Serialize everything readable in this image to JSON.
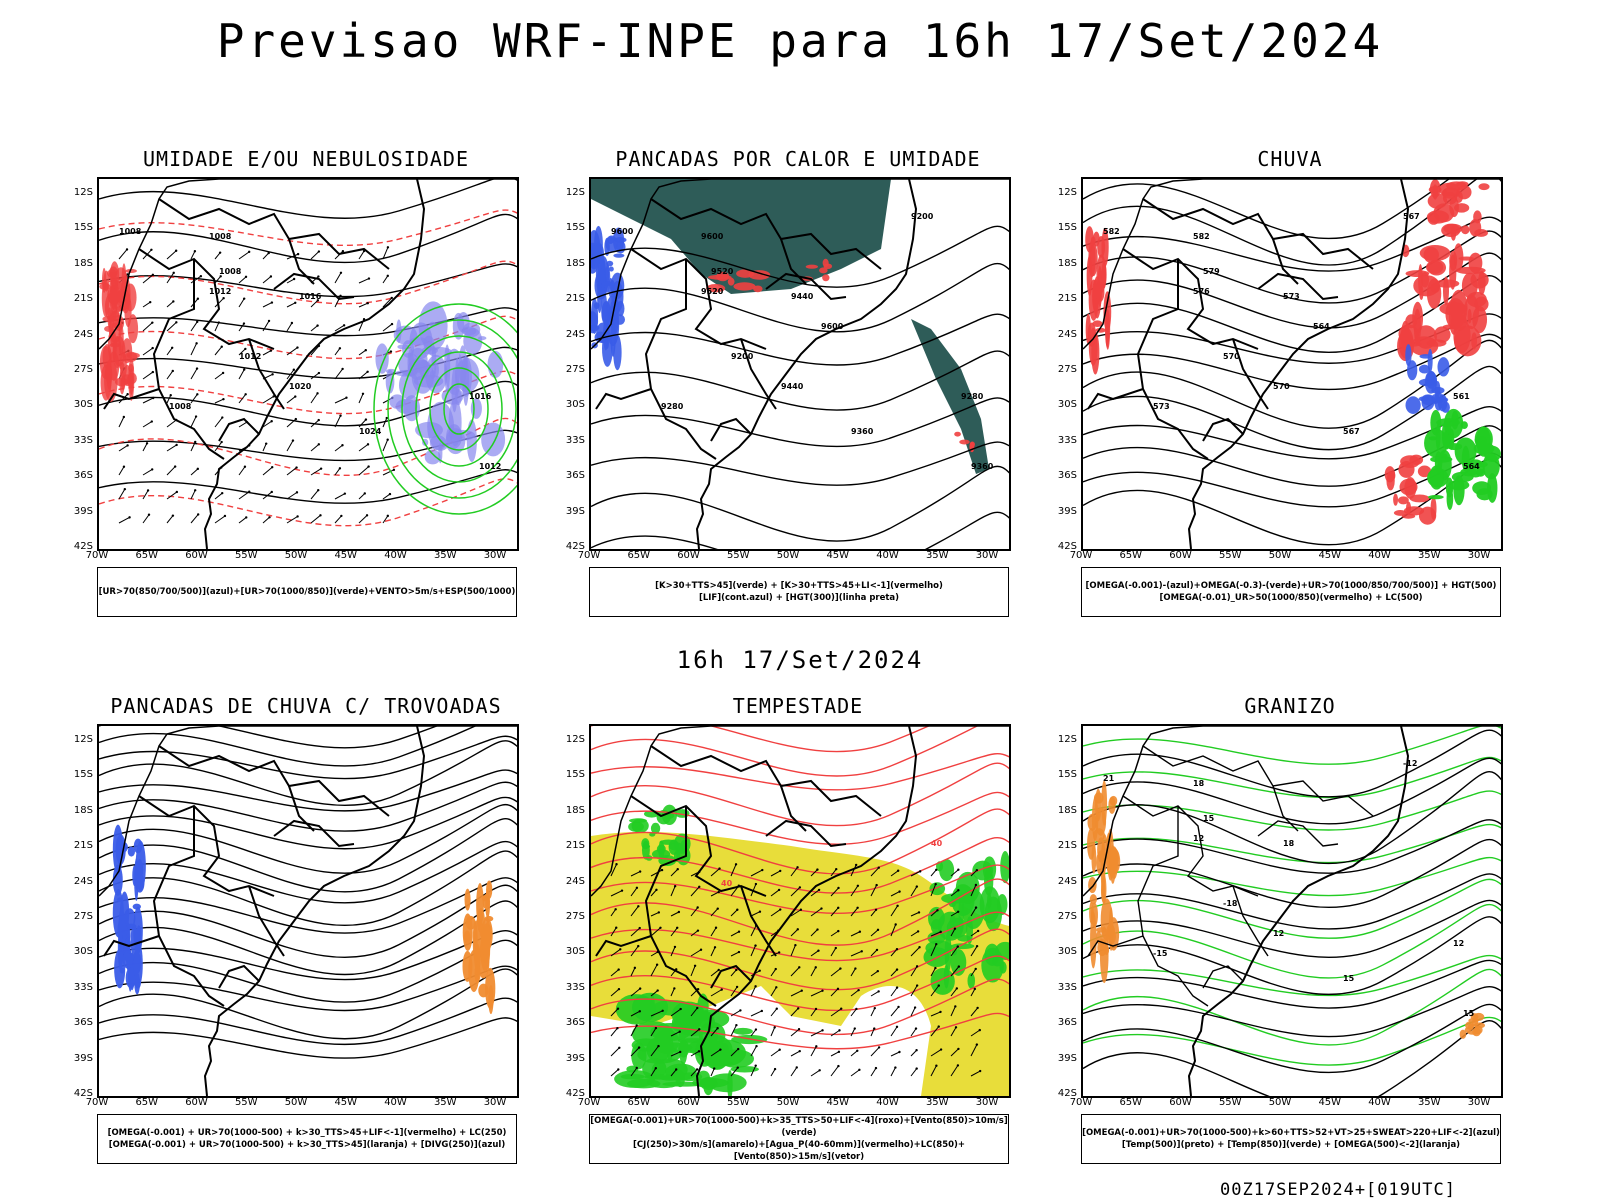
{
  "main_title": "Previsao WRF-INPE  para 16h 17/Set/2024",
  "date_subtitle": "16h 17/Set/2024",
  "footer": "00Z17SEP2024+[019UTC]",
  "lat_labels": [
    "12S",
    "15S",
    "18S",
    "21S",
    "24S",
    "27S",
    "30S",
    "33S",
    "36S",
    "39S",
    "42S"
  ],
  "lon_labels": [
    "70W",
    "65W",
    "60W",
    "55W",
    "50W",
    "45W",
    "40W",
    "35W",
    "30W"
  ],
  "colors": {
    "blue": "#3a5ce8",
    "green": "#22cc22",
    "red": "#f04040",
    "teal": "#2e5c58",
    "yellow": "#e8dd3a",
    "orange": "#f08c30",
    "lavender": "#8888ee"
  },
  "panels": [
    {
      "title": "UMIDADE E/OU NEBULOSIDADE",
      "legend": [
        "[UR>70(850/700/500)](azul)+[UR>70(1000/850)](verde)+VENTO>5m/s+ESP(500/1000)"
      ],
      "contour_labels": [
        "1008",
        "1008",
        "1008",
        "1012",
        "1016",
        "1020",
        "1024",
        "1012",
        "1016",
        "1008",
        "1012"
      ]
    },
    {
      "title": "PANCADAS POR CALOR E UMIDADE",
      "legend": [
        "[K>30+TTS>45](verde)  +  [K>30+TTS>45+LI<-1](vermelho)",
        "[LIF](cont.azul)  +  [HGT(300)](linha preta)"
      ],
      "contour_labels": [
        "9600",
        "9600",
        "9520",
        "9520",
        "9440",
        "9440",
        "9360",
        "9360",
        "9280",
        "9280",
        "9200",
        "9200",
        "9600"
      ]
    },
    {
      "title": "CHUVA",
      "legend": [
        "[OMEGA(-0.001)-(azul)+OMEGA(-0.3)-(verde)+UR>70(1000/850/700/500)]  +  HGT(500)",
        "[OMEGA(-0.01)_UR>50(1000/850)(vermelho)  +  LC(500)"
      ],
      "contour_labels": [
        "582",
        "582",
        "579",
        "576",
        "573",
        "570",
        "567",
        "564",
        "561",
        "573",
        "570",
        "567",
        "564"
      ]
    },
    {
      "title": "PANCADAS DE CHUVA C/ TROVOADAS",
      "legend": [
        "[OMEGA(-0.001)  +  UR>70(1000-500)  +  k>30_TTS>45+LIF<-1](vermelho)  +  LC(250)",
        "[OMEGA(-0.001)  +  UR>70(1000-500)  +  k>30_TTS>45](laranja)  +  [DIVG(250)](azul)"
      ]
    },
    {
      "title": "TEMPESTADE",
      "legend": [
        "[OMEGA(-0.001)+UR>70(1000-500)+k>35_TTS>50+LIF<-4](roxo)+[Vento(850)>10m/s](verde)",
        "[CJ(250)>30m/s](amarelo)+[Agua_P(40-60mm)](vermelho)+LC(850)+[Vento(850)>15m/s](vetor)"
      ],
      "contour_labels": [
        "40",
        "40"
      ]
    },
    {
      "title": "GRANIZO",
      "legend": [
        "[OMEGA(-0.001)+UR>70(1000-500)+k>60+TTS>52+VT>25+SWEAT>220+LIF<-2](azul)",
        "[Temp(500)](preto)  +  [Temp(850)](verde)  +  [OMEGA(500)<-2](laranja)"
      ],
      "contour_labels": [
        "21",
        "18",
        "15",
        "12",
        "18",
        "12",
        "15",
        "15",
        "12",
        "-15",
        "-18",
        "-12"
      ]
    }
  ]
}
